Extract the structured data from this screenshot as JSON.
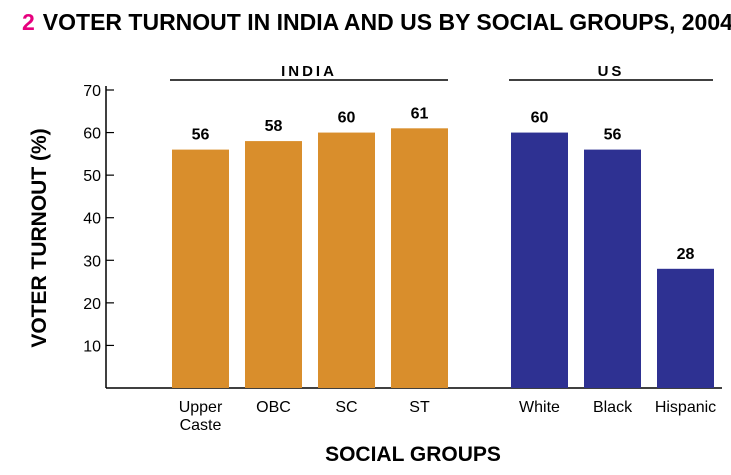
{
  "chart_data": {
    "type": "bar",
    "title_number": "2",
    "title": "VOTER TURNOUT IN INDIA AND US BY SOCIAL GROUPS, 2004",
    "xlabel": "SOCIAL GROUPS",
    "ylabel": "VOTER TURNOUT (%)",
    "ylim": [
      0,
      70
    ],
    "yticks": [
      "10",
      "20",
      "30",
      "40",
      "50",
      "60",
      "70"
    ],
    "grid": false,
    "groups": [
      {
        "name": "INDIA",
        "color": "#d98e2c",
        "categories": [
          [
            "Upper",
            "Caste"
          ],
          [
            "OBC"
          ],
          [
            "SC"
          ],
          [
            "ST"
          ]
        ],
        "values": [
          56,
          58,
          60,
          61
        ]
      },
      {
        "name": "US",
        "color": "#2e3192",
        "categories": [
          [
            "White"
          ],
          [
            "Black"
          ],
          [
            "Hispanic"
          ]
        ],
        "values": [
          60,
          56,
          28
        ]
      }
    ]
  }
}
